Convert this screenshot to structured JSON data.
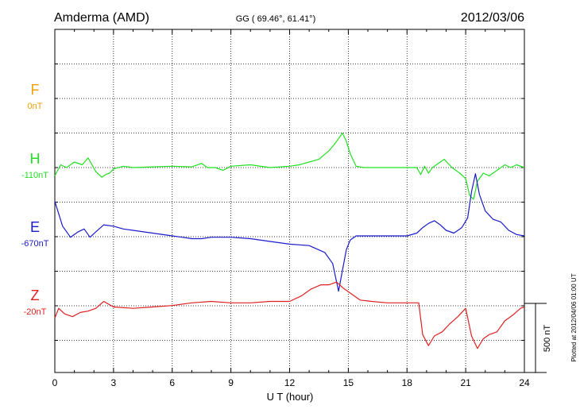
{
  "chart_data": {
    "type": "line",
    "title_left": "Amderma (AMD)",
    "title_center": "GG ( 69.46°,  61.41°)",
    "title_right": "2012/03/06",
    "xlabel": "U T (hour)",
    "xlim": [
      0,
      24
    ],
    "x_ticks": [
      "0",
      "3",
      "6",
      "9",
      "12",
      "15",
      "18",
      "21",
      "24"
    ],
    "grid": true,
    "scale_bar_label": "500 nT",
    "scale_bar_nT": 500,
    "footnote": "Plotted at 2012/04/06 01:00 UT",
    "series": [
      {
        "name": "F",
        "baseline_label": "0nT",
        "color": "#f0a000",
        "baseline_nT": 0,
        "x": [],
        "values": []
      },
      {
        "name": "H",
        "baseline_label": "-110nT",
        "color": "#22e022",
        "baseline_nT": -110,
        "x": [
          0,
          0.3,
          0.6,
          1.0,
          1.4,
          1.7,
          1.9,
          2.1,
          2.4,
          2.6,
          2.8,
          3.0,
          3.5,
          4.0,
          5.0,
          6.0,
          7.0,
          7.5,
          7.8,
          8.2,
          8.6,
          9.0,
          10.0,
          11.0,
          12.0,
          12.5,
          13.0,
          13.5,
          14.0,
          14.3,
          14.5,
          14.7,
          14.9,
          15.1,
          15.4,
          15.8,
          16.5,
          17.5,
          18.5,
          18.7,
          18.9,
          19.1,
          19.3,
          19.6,
          19.9,
          20.3,
          20.7,
          21.0,
          21.2,
          21.4,
          21.6,
          21.9,
          22.2,
          22.6,
          23.0,
          23.3,
          23.6,
          24.0
        ],
        "values": [
          -60,
          20,
          0,
          40,
          20,
          70,
          20,
          -30,
          -70,
          -50,
          -40,
          -10,
          10,
          0,
          5,
          10,
          5,
          30,
          0,
          0,
          -20,
          10,
          20,
          0,
          10,
          20,
          40,
          60,
          120,
          170,
          210,
          250,
          190,
          100,
          10,
          0,
          0,
          0,
          0,
          -50,
          10,
          -40,
          0,
          30,
          60,
          0,
          -40,
          -80,
          -200,
          -230,
          -100,
          -40,
          -60,
          -20,
          20,
          0,
          20,
          0
        ]
      },
      {
        "name": "E",
        "baseline_label": "-670nT",
        "color": "#1a1acc",
        "baseline_nT": -670,
        "x": [
          0,
          0.2,
          0.4,
          0.8,
          1.2,
          1.5,
          1.8,
          2.1,
          2.5,
          3.0,
          3.5,
          4.0,
          5.0,
          6.0,
          6.5,
          7.0,
          7.5,
          8.0,
          9.0,
          10.0,
          11.0,
          12.0,
          13.0,
          13.8,
          14.2,
          14.5,
          14.7,
          14.9,
          15.1,
          15.4,
          16.0,
          17.0,
          18.0,
          18.5,
          18.8,
          19.1,
          19.4,
          19.7,
          20.0,
          20.4,
          20.8,
          21.1,
          21.3,
          21.5,
          21.7,
          22.0,
          22.4,
          22.8,
          23.2,
          23.6,
          24.0
        ],
        "values": [
          250,
          160,
          70,
          -10,
          30,
          50,
          -10,
          30,
          80,
          70,
          50,
          40,
          20,
          0,
          -10,
          -20,
          -20,
          -10,
          -10,
          -20,
          -40,
          -60,
          -70,
          -120,
          -200,
          -400,
          -250,
          -100,
          -30,
          0,
          0,
          0,
          0,
          20,
          60,
          90,
          110,
          80,
          40,
          20,
          60,
          130,
          320,
          450,
          300,
          180,
          120,
          100,
          40,
          10,
          0
        ]
      },
      {
        "name": "Z",
        "baseline_label": "-20nT",
        "color": "#e02020",
        "baseline_nT": -20,
        "x": [
          0,
          0.2,
          0.5,
          0.9,
          1.3,
          1.7,
          2.1,
          2.5,
          3.0,
          4.0,
          5.0,
          6.0,
          7.0,
          8.0,
          9.0,
          10.0,
          11.0,
          12.0,
          12.6,
          13.1,
          13.6,
          14.0,
          14.4,
          14.8,
          15.2,
          15.6,
          16.2,
          17.0,
          18.0,
          18.6,
          18.8,
          19.1,
          19.4,
          19.8,
          20.2,
          20.6,
          21.0,
          21.3,
          21.6,
          21.9,
          22.2,
          22.6,
          23.0,
          23.4,
          23.8,
          24.0
        ],
        "values": [
          -100,
          -30,
          -70,
          -90,
          -60,
          -50,
          -30,
          20,
          -20,
          -30,
          -20,
          -10,
          10,
          20,
          10,
          10,
          20,
          20,
          60,
          110,
          140,
          140,
          160,
          110,
          70,
          30,
          20,
          10,
          10,
          10,
          -220,
          -300,
          -230,
          -200,
          -140,
          -90,
          -30,
          -230,
          -320,
          -250,
          -220,
          -200,
          -120,
          -80,
          -30,
          -20
        ]
      }
    ]
  }
}
